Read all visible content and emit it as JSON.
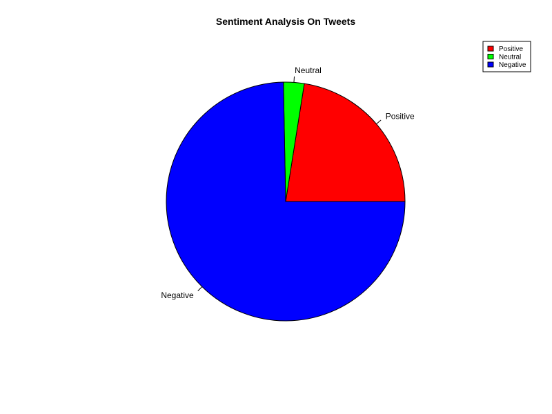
{
  "chart_data": {
    "type": "pie",
    "title": "Sentiment Analysis On Tweets",
    "categories": [
      "Positive",
      "Neutral",
      "Negative"
    ],
    "values": [
      22.5,
      2.8,
      74.7
    ],
    "colors": [
      "#ff0000",
      "#00ff00",
      "#0000ff"
    ],
    "start_angle_deg": 0,
    "direction": "counterclockwise",
    "legend": {
      "position": "top-right",
      "entries": [
        "Positive",
        "Neutral",
        "Negative"
      ]
    }
  }
}
